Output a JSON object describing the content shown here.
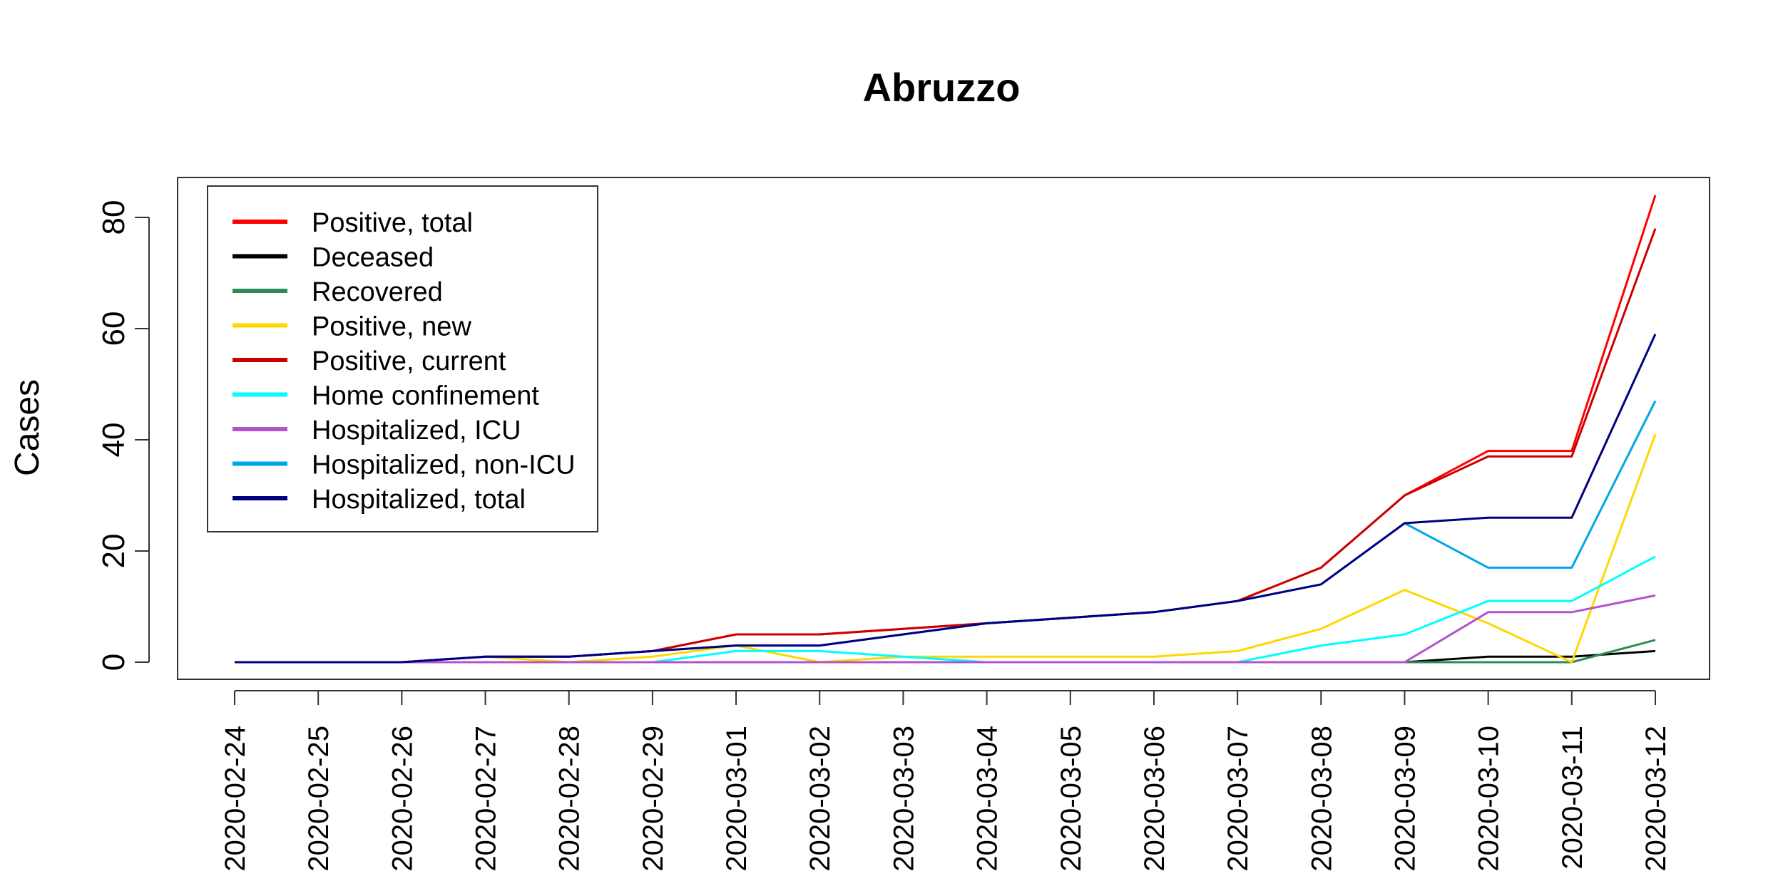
{
  "chart_data": {
    "type": "line",
    "title": "Abruzzo",
    "xlabel": "",
    "ylabel": "Cases",
    "x": [
      "2020-02-24",
      "2020-02-25",
      "2020-02-26",
      "2020-02-27",
      "2020-02-28",
      "2020-02-29",
      "2020-03-01",
      "2020-03-02",
      "2020-03-03",
      "2020-03-04",
      "2020-03-05",
      "2020-03-06",
      "2020-03-07",
      "2020-03-08",
      "2020-03-09",
      "2020-03-10",
      "2020-03-11",
      "2020-03-12"
    ],
    "ylim": [
      0,
      90
    ],
    "yticks": [
      0,
      20,
      40,
      60,
      80
    ],
    "grid": false,
    "legend_position": "top-left",
    "series": [
      {
        "name": "Positive, total",
        "color": "#ff0000",
        "values": [
          0,
          0,
          0,
          1,
          1,
          2,
          5,
          5,
          6,
          7,
          8,
          9,
          11,
          17,
          30,
          38,
          38,
          84
        ]
      },
      {
        "name": "Deceased",
        "color": "#000000",
        "values": [
          0,
          0,
          0,
          0,
          0,
          0,
          0,
          0,
          0,
          0,
          0,
          0,
          0,
          0,
          0,
          1,
          1,
          2
        ]
      },
      {
        "name": "Recovered",
        "color": "#2e8b57",
        "values": [
          0,
          0,
          0,
          0,
          0,
          0,
          0,
          0,
          0,
          0,
          0,
          0,
          0,
          0,
          0,
          0,
          0,
          4
        ]
      },
      {
        "name": "Positive, new",
        "color": "#ffd700",
        "values": [
          0,
          0,
          0,
          1,
          0,
          1,
          3,
          0,
          1,
          1,
          1,
          1,
          2,
          6,
          13,
          7,
          0,
          41
        ]
      },
      {
        "name": "Positive, current",
        "color": "#cc0000",
        "values": [
          0,
          0,
          0,
          1,
          1,
          2,
          5,
          5,
          6,
          7,
          8,
          9,
          11,
          17,
          30,
          37,
          37,
          78
        ]
      },
      {
        "name": "Home confinement",
        "color": "#00ffff",
        "values": [
          0,
          0,
          0,
          0,
          0,
          0,
          2,
          2,
          1,
          0,
          0,
          0,
          0,
          3,
          5,
          11,
          11,
          19
        ]
      },
      {
        "name": "Hospitalized, ICU",
        "color": "#b452cd",
        "values": [
          0,
          0,
          0,
          0,
          0,
          0,
          0,
          0,
          0,
          0,
          0,
          0,
          0,
          0,
          0,
          9,
          9,
          12
        ]
      },
      {
        "name": "Hospitalized, non-ICU",
        "color": "#00a5ee",
        "values": [
          0,
          0,
          0,
          1,
          1,
          2,
          3,
          3,
          5,
          7,
          8,
          9,
          11,
          14,
          25,
          17,
          17,
          47
        ]
      },
      {
        "name": "Hospitalized, total",
        "color": "#000080",
        "values": [
          0,
          0,
          0,
          1,
          1,
          2,
          3,
          3,
          5,
          7,
          8,
          9,
          11,
          14,
          25,
          26,
          26,
          59
        ]
      }
    ]
  }
}
